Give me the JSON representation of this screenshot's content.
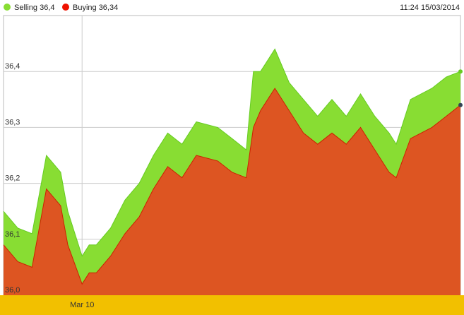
{
  "legend": {
    "selling_label": "Selling 36,4",
    "buying_label": "Buying 36,34",
    "timestamp": "11:24 15/03/2014"
  },
  "colors": {
    "selling": "#88dd33",
    "selling_line": "#66cc22",
    "buying": "#dd5522",
    "buying_line": "#cc2200",
    "axis_band": "#f2c000",
    "grid": "#cccccc"
  },
  "chart_data": {
    "type": "area",
    "title": "",
    "xlabel": "",
    "ylabel": "",
    "ylim": [
      36.0,
      36.5
    ],
    "yticks": [
      {
        "value": 36.0,
        "label": "36,0"
      },
      {
        "value": 36.1,
        "label": "36,1"
      },
      {
        "value": 36.2,
        "label": "36,2"
      },
      {
        "value": 36.3,
        "label": "36,3"
      },
      {
        "value": 36.4,
        "label": "36,4"
      }
    ],
    "xlim": [
      0,
      64
    ],
    "xticks": [
      {
        "x": 11,
        "label": "Mar 10"
      }
    ],
    "grid": true,
    "series": [
      {
        "name": "Selling",
        "x": [
          0,
          2,
          4,
          6,
          8,
          9,
          11,
          12,
          13,
          15,
          17,
          19,
          21,
          23,
          25,
          27,
          30,
          32,
          34,
          35,
          36,
          38,
          40,
          42,
          44,
          46,
          48,
          50,
          52,
          54,
          55,
          57,
          60,
          62,
          64
        ],
        "values": [
          36.15,
          36.12,
          36.11,
          36.25,
          36.22,
          36.15,
          36.07,
          36.09,
          36.09,
          36.12,
          36.17,
          36.2,
          36.25,
          36.29,
          36.27,
          36.31,
          36.3,
          36.28,
          36.26,
          36.4,
          36.4,
          36.44,
          36.38,
          36.35,
          36.32,
          36.35,
          36.32,
          36.36,
          36.32,
          36.29,
          36.27,
          36.35,
          36.37,
          36.39,
          36.4
        ]
      },
      {
        "name": "Buying",
        "x": [
          0,
          2,
          4,
          6,
          8,
          9,
          11,
          12,
          13,
          15,
          17,
          19,
          21,
          23,
          25,
          27,
          30,
          32,
          34,
          35,
          36,
          38,
          40,
          42,
          44,
          46,
          48,
          50,
          52,
          54,
          55,
          57,
          60,
          62,
          64
        ],
        "values": [
          36.09,
          36.06,
          36.05,
          36.19,
          36.16,
          36.09,
          36.02,
          36.04,
          36.04,
          36.07,
          36.11,
          36.14,
          36.19,
          36.23,
          36.21,
          36.25,
          36.24,
          36.22,
          36.21,
          36.3,
          36.33,
          36.37,
          36.33,
          36.29,
          36.27,
          36.29,
          36.27,
          36.3,
          36.26,
          36.22,
          36.21,
          36.28,
          36.3,
          36.32,
          36.34
        ]
      }
    ]
  }
}
